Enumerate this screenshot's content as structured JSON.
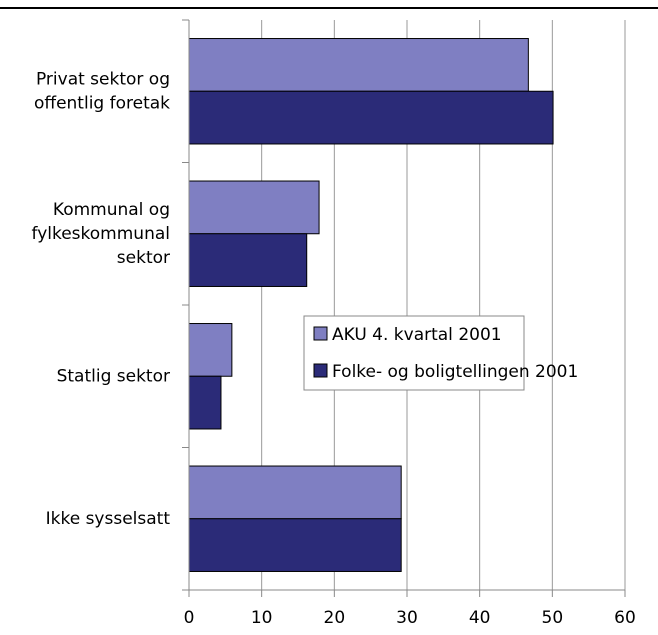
{
  "chart_data": {
    "type": "barh",
    "categories": [
      "Privat sektor og\noffentlig foretak",
      "Kommunal og\nfylkeskommunal\nsektor",
      "Statlig sektor",
      "Ikke sysselsatt"
    ],
    "series": [
      {
        "name": "AKU 4. kvartal 2001",
        "color": "#7f7fc2",
        "values": [
          46.7,
          17.9,
          5.9,
          29.2
        ]
      },
      {
        "name": "Folke- og boligtellingen 2001",
        "color": "#2b2b78",
        "values": [
          50.1,
          16.2,
          4.4,
          29.2
        ]
      }
    ],
    "xlim": [
      0,
      60
    ],
    "xticks": [
      0,
      10,
      20,
      30,
      40,
      50,
      60
    ],
    "grid": true
  }
}
